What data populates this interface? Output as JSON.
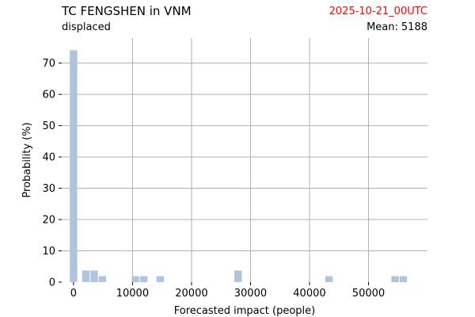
{
  "header": {
    "title": "TC FENGSHEN in VNM",
    "subtitle": "displaced",
    "date": "2025-10-21_00UTC",
    "mean_label": "Mean:",
    "mean_value": "5188"
  },
  "colors": {
    "bar": "#b0c4de",
    "grid": "#b0b0b0",
    "date": "#ff0000"
  },
  "chart_data": {
    "type": "bar",
    "xlabel": "Forecasted impact (people)",
    "ylabel": "Probability (%)",
    "xlim": [
      -2000,
      60000
    ],
    "ylim": [
      0,
      78
    ],
    "bin_width": 1400,
    "xticks": [
      0,
      10000,
      20000,
      30000,
      40000,
      50000
    ],
    "xtick_labels": [
      "0",
      "10000",
      "20000",
      "30000",
      "40000",
      "50000"
    ],
    "yticks": [
      0,
      10,
      20,
      30,
      40,
      50,
      60,
      70
    ],
    "ytick_labels": [
      "0",
      "10",
      "20",
      "30",
      "40",
      "50",
      "60",
      "70"
    ],
    "grid": true,
    "bars": [
      {
        "x": 0,
        "value": 74.1
      },
      {
        "x": 2100,
        "value": 3.7
      },
      {
        "x": 3500,
        "value": 3.7
      },
      {
        "x": 4900,
        "value": 1.9
      },
      {
        "x": 10500,
        "value": 1.9
      },
      {
        "x": 11900,
        "value": 1.9
      },
      {
        "x": 14700,
        "value": 1.9
      },
      {
        "x": 27900,
        "value": 3.7
      },
      {
        "x": 43300,
        "value": 1.9
      },
      {
        "x": 54500,
        "value": 1.9
      },
      {
        "x": 55900,
        "value": 1.9
      }
    ]
  }
}
